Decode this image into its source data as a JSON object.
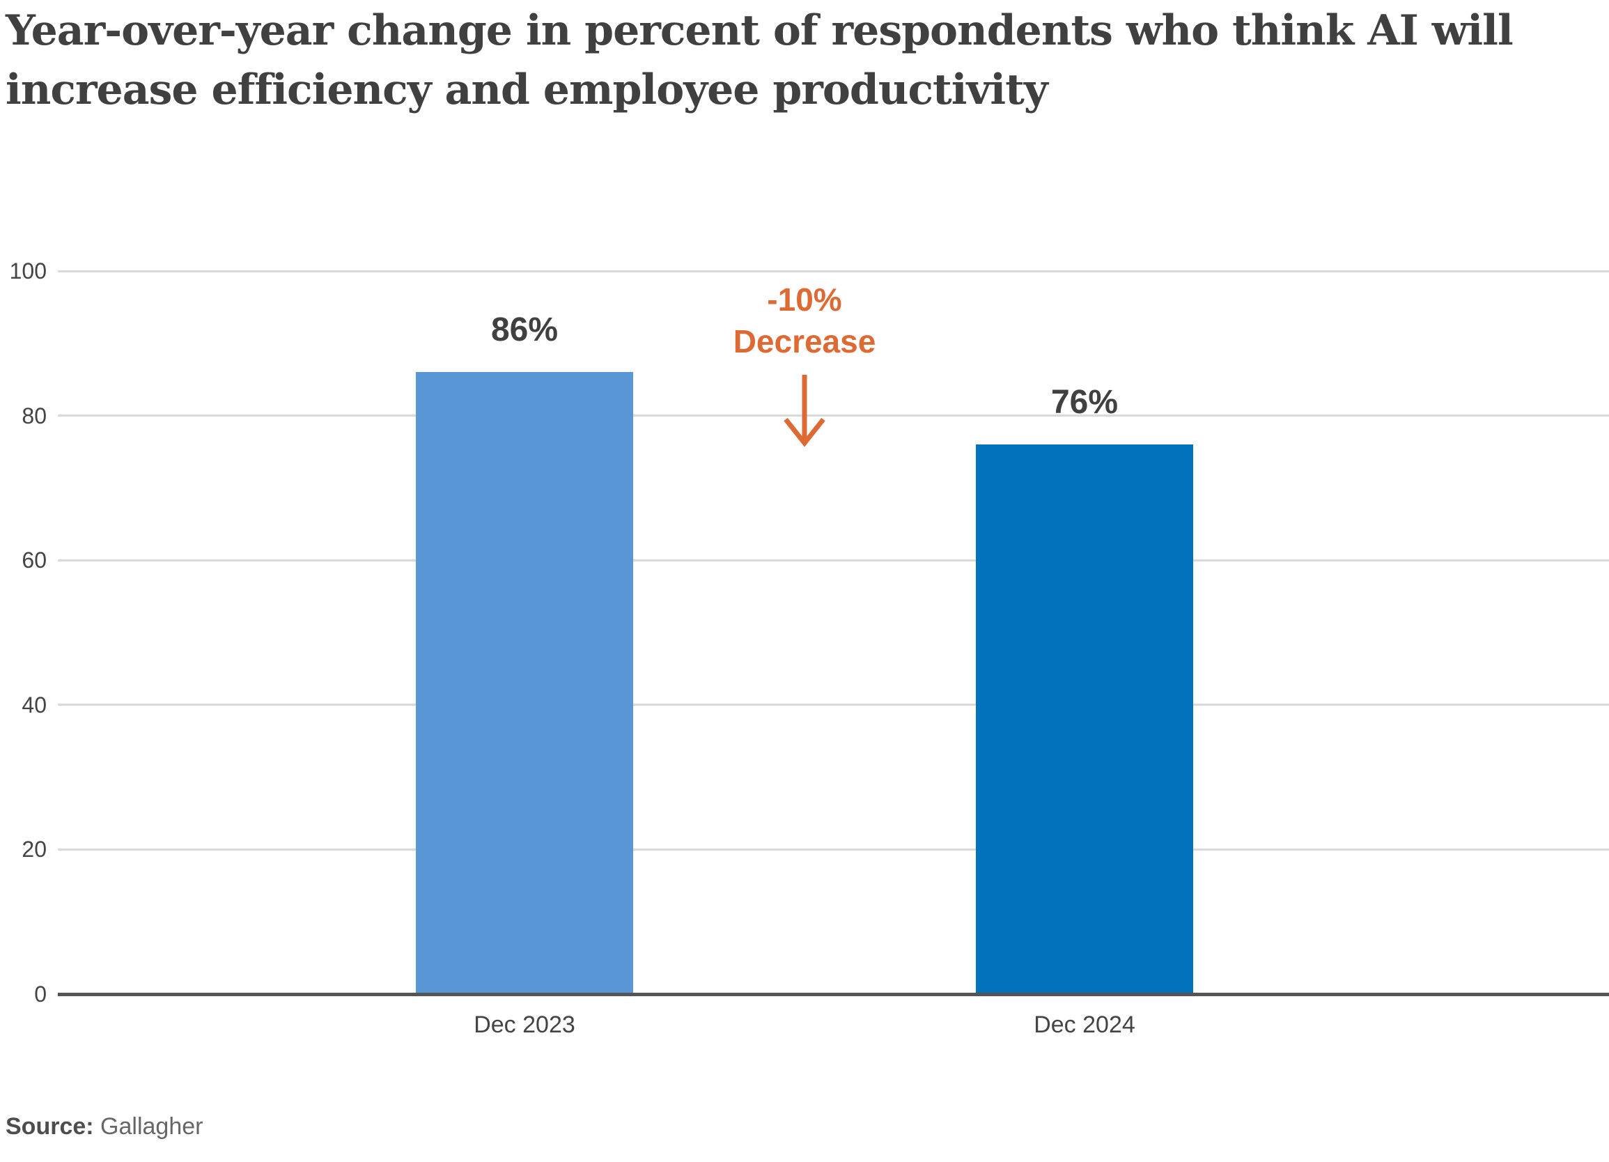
{
  "header": {
    "title_line1": "Year-over-year change in percent of respondents who think AI will",
    "title_line2": "increase efficiency and employee productivity"
  },
  "annotation": {
    "line1": "-10%",
    "line2": "Decrease"
  },
  "source": {
    "label": "Source:",
    "text": "Gallagher"
  },
  "colors": {
    "bar_2023": "#5996D6",
    "bar_2024": "#0073BC",
    "annotation_orange": "#DE6A33",
    "gridline": "#D9D9D9",
    "axis_line": "#555555",
    "text_dark": "#404040"
  },
  "chart_data": {
    "type": "bar",
    "title": "Year-over-year change in percent of respondents who think AI will increase efficiency and employee productivity",
    "categories": [
      "Dec 2023",
      "Dec 2024"
    ],
    "values": [
      86,
      76
    ],
    "value_labels": [
      "86%",
      "76%"
    ],
    "bar_colors": [
      "#5996D6",
      "#0073BC"
    ],
    "xlabel": "",
    "ylabel": "",
    "ylim": [
      0,
      100
    ],
    "yticks": [
      0,
      20,
      40,
      60,
      80,
      100
    ],
    "grid": "horizontal gridlines on",
    "legend": "none",
    "annotation": "-10% Decrease (between Dec 2023 and Dec 2024 bars, orange, with downward arrow)",
    "source": "Gallagher"
  }
}
